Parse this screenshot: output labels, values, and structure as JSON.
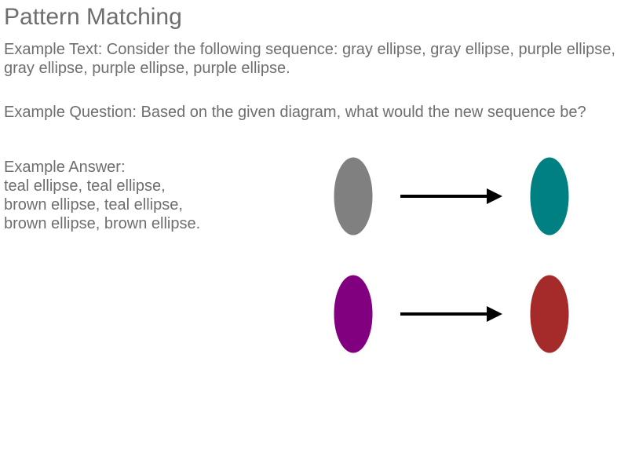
{
  "title": "Pattern Matching",
  "example_text": "Example Text: Consider the following sequence: gray ellipse, gray ellipse, purple ellipse, gray ellipse, purple ellipse, purple ellipse.",
  "example_question": "Example Question: Based on the given diagram, what would the new sequence be?",
  "example_answer_label": "Example Answer:",
  "example_answer_lines": [
    "teal ellipse, teal ellipse,",
    "brown ellipse, teal ellipse,",
    "brown ellipse, brown ellipse."
  ],
  "mappings": [
    {
      "from_color": "#808080",
      "from_name": "gray",
      "to_color": "#008080",
      "to_name": "teal"
    },
    {
      "from_color": "#800080",
      "from_name": "purple",
      "to_color": "#a52a2a",
      "to_name": "brown"
    }
  ]
}
